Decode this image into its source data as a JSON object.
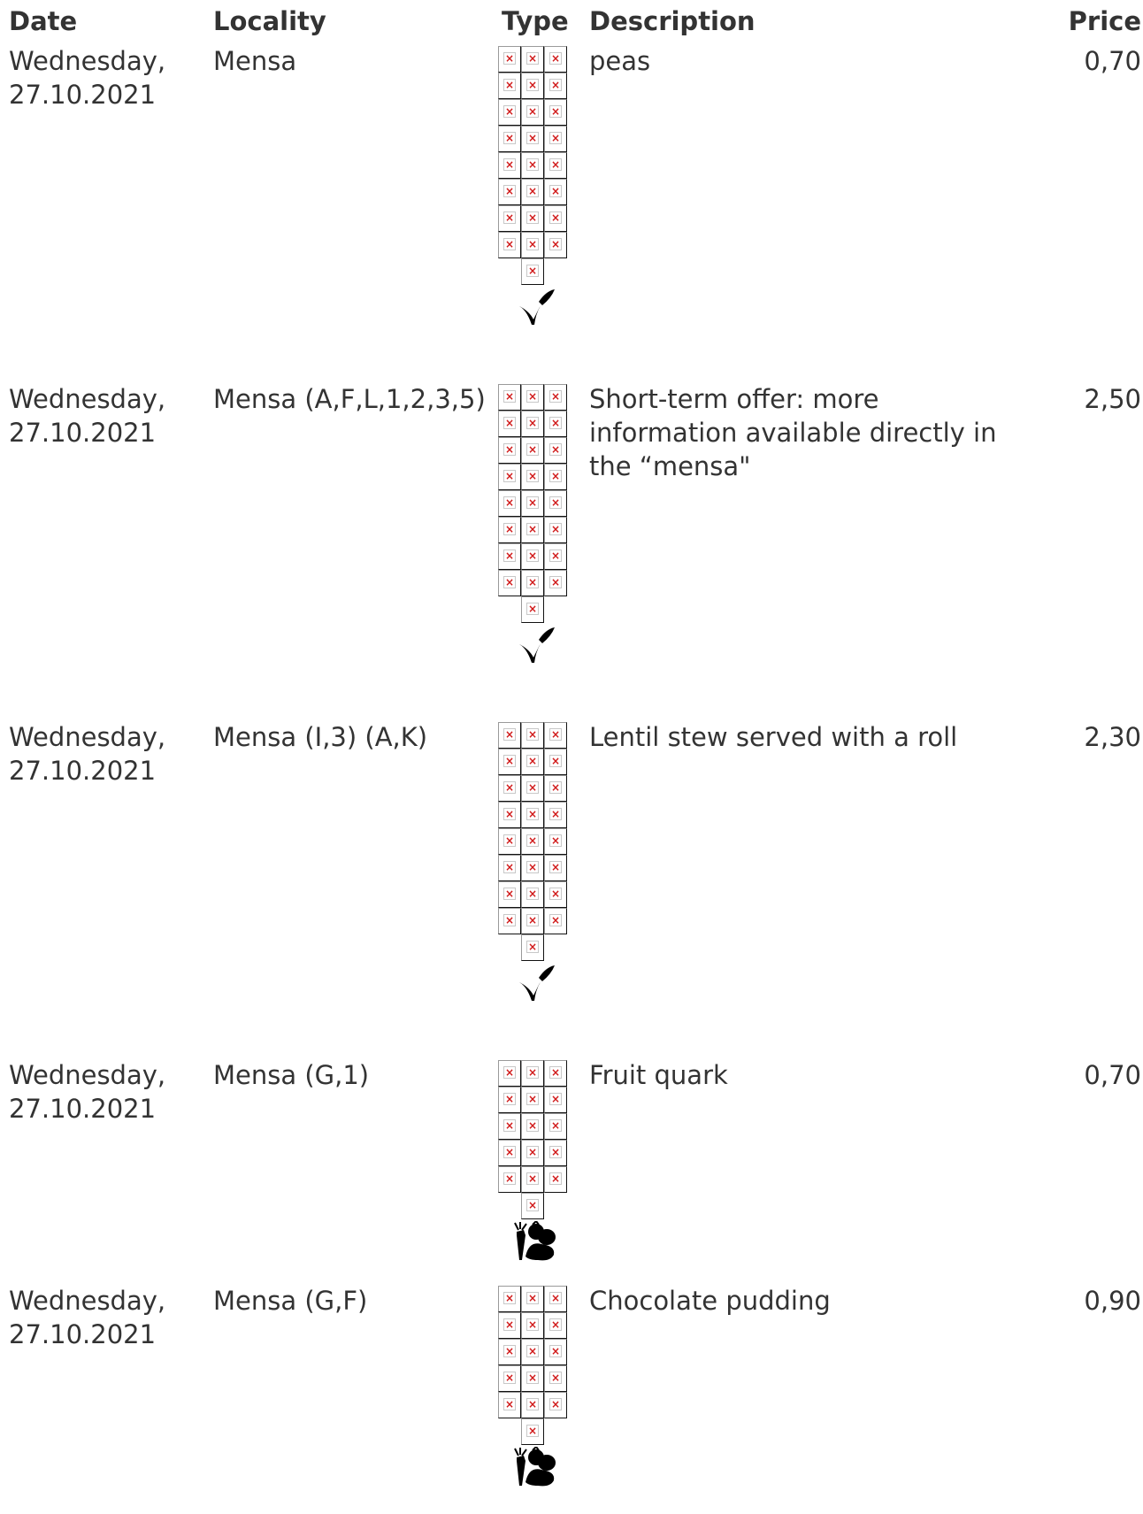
{
  "table": {
    "headers": {
      "date": "Date",
      "locality": "Locality",
      "type": "Type",
      "description": "Description",
      "price": "Price"
    },
    "rows": [
      {
        "date_line1": "Wednesday,",
        "date_line2": "27.10.2021",
        "locality": "Mensa",
        "description": "peas",
        "price": "0,70",
        "icon_rows": 8,
        "diet_icon": "vegan-sprout-icon"
      },
      {
        "date_line1": "Wednesday,",
        "date_line2": "27.10.2021",
        "locality": "Mensa (A,F,L,1,2,3,5)",
        "description": "Short-term offer: more information available directly in the “mensa\"",
        "price": "2,50",
        "icon_rows": 8,
        "diet_icon": "vegan-sprout-icon"
      },
      {
        "date_line1": "Wednesday,",
        "date_line2": "27.10.2021",
        "locality": "Mensa (I,3) (A,K)",
        "description": "Lentil stew served with a roll",
        "price": "2,30",
        "icon_rows": 8,
        "diet_icon": "vegan-sprout-icon"
      },
      {
        "date_line1": "Wednesday,",
        "date_line2": "27.10.2021",
        "locality": "Mensa (G,1)",
        "description": "Fruit quark",
        "price": "0,70",
        "icon_rows": 5,
        "diet_icon": "vegetarian-vegetables-icon"
      },
      {
        "date_line1": "Wednesday,",
        "date_line2": "27.10.2021",
        "locality": "Mensa (G,F)",
        "description": "Chocolate pudding",
        "price": "0,90",
        "icon_rows": 5,
        "diet_icon": "vegetarian-vegetables-icon"
      }
    ]
  },
  "icons": {
    "broken_image_glyph": "×"
  },
  "colors": {
    "text": "#333333",
    "broken_x": "#d01818"
  }
}
